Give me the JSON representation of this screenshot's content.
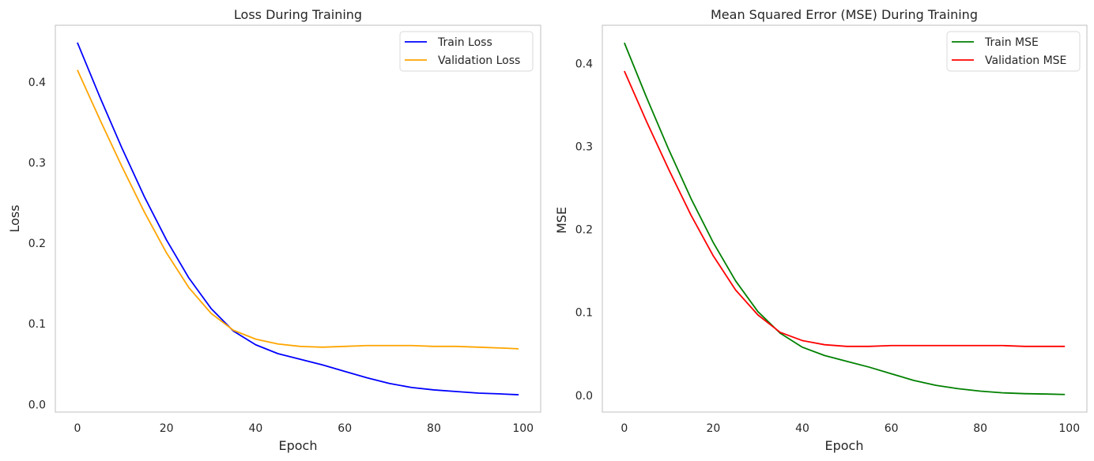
{
  "chart_data": [
    {
      "type": "line",
      "title": "Loss During Training",
      "xlabel": "Epoch",
      "ylabel": "Loss",
      "xlim": [
        -4.95,
        103.95
      ],
      "ylim": [
        -0.0095,
        0.4705
      ],
      "xticks": [
        0,
        20,
        40,
        60,
        80,
        100
      ],
      "xtick_labels": [
        "0",
        "20",
        "40",
        "60",
        "80",
        "100"
      ],
      "yticks": [
        0.0,
        0.1,
        0.2,
        0.3,
        0.4
      ],
      "ytick_labels": [
        "0.0",
        "0.1",
        "0.2",
        "0.3",
        "0.4"
      ],
      "grid": false,
      "legend_position": "top-right",
      "x": [
        0,
        5,
        10,
        15,
        20,
        25,
        30,
        35,
        40,
        45,
        50,
        55,
        60,
        65,
        70,
        75,
        80,
        85,
        90,
        95,
        99
      ],
      "series": [
        {
          "name": "Train Loss",
          "color": "#0000ff",
          "values": [
            0.449,
            0.382,
            0.318,
            0.258,
            0.204,
            0.157,
            0.119,
            0.091,
            0.074,
            0.063,
            0.056,
            0.049,
            0.041,
            0.033,
            0.026,
            0.021,
            0.018,
            0.016,
            0.014,
            0.013,
            0.012
          ]
        },
        {
          "name": "Validation Loss",
          "color": "#ffa500",
          "values": [
            0.415,
            0.354,
            0.295,
            0.239,
            0.188,
            0.145,
            0.113,
            0.092,
            0.081,
            0.075,
            0.072,
            0.071,
            0.072,
            0.073,
            0.073,
            0.073,
            0.072,
            0.072,
            0.071,
            0.07,
            0.069
          ]
        }
      ]
    },
    {
      "type": "line",
      "title": "Mean Squared Error (MSE) During Training",
      "xlabel": "Epoch",
      "ylabel": "MSE",
      "xlim": [
        -4.95,
        103.95
      ],
      "ylim": [
        -0.0202,
        0.4462
      ],
      "xticks": [
        0,
        20,
        40,
        60,
        80,
        100
      ],
      "xtick_labels": [
        "0",
        "20",
        "40",
        "60",
        "80",
        "100"
      ],
      "yticks": [
        0.0,
        0.1,
        0.2,
        0.3,
        0.4
      ],
      "ytick_labels": [
        "0.0",
        "0.1",
        "0.2",
        "0.3",
        "0.4"
      ],
      "grid": false,
      "legend_position": "top-right",
      "x": [
        0,
        5,
        10,
        15,
        20,
        25,
        30,
        35,
        40,
        45,
        50,
        55,
        60,
        65,
        70,
        75,
        80,
        85,
        90,
        95,
        99
      ],
      "series": [
        {
          "name": "Train MSE",
          "color": "#008000",
          "values": [
            0.425,
            0.359,
            0.296,
            0.237,
            0.184,
            0.138,
            0.101,
            0.075,
            0.058,
            0.048,
            0.041,
            0.034,
            0.026,
            0.018,
            0.012,
            0.008,
            0.005,
            0.003,
            0.002,
            0.0015,
            0.001
          ]
        },
        {
          "name": "Validation MSE",
          "color": "#ff0000",
          "values": [
            0.391,
            0.33,
            0.272,
            0.217,
            0.168,
            0.127,
            0.097,
            0.076,
            0.066,
            0.061,
            0.059,
            0.059,
            0.06,
            0.06,
            0.06,
            0.06,
            0.06,
            0.06,
            0.059,
            0.059,
            0.059
          ]
        }
      ]
    }
  ]
}
